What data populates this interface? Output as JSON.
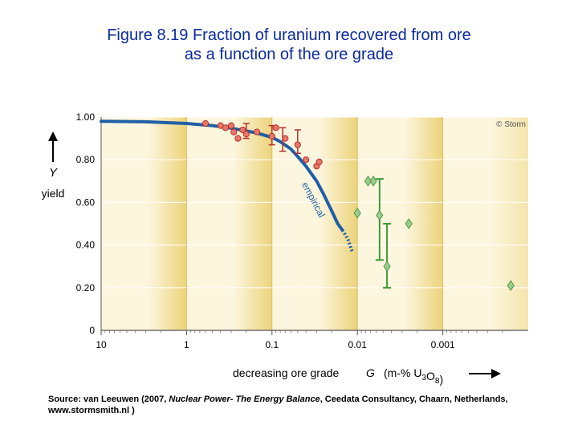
{
  "title": {
    "line1": "Figure 8.19 Fraction of uranium recovered from ore",
    "line2": "as a function of the ore grade"
  },
  "source": {
    "prefix": "Source: van Leeuwen (2007, ",
    "book": "Nuclear Power- The Energy Balance",
    "suffix": ", Ceedata Consultancy, Chaarn, Netherlands, www.stormsmith.nl )"
  },
  "colors": {
    "band_light": "#fdf6de",
    "band_dark": "#ecd37a",
    "curve": "#1f5fa6",
    "red_point": "#e8776a",
    "red_edge": "#b8302a",
    "green_point": "#9ccc8c",
    "green_edge": "#4f9a45",
    "green_bar": "#3d9a3a"
  },
  "chart_data": {
    "type": "scatter",
    "xscale": "log-decreasing",
    "xlim": [
      10,
      0.0001
    ],
    "ylim": [
      0,
      1.0
    ],
    "x_ticks": [
      10,
      1,
      0.1,
      0.01,
      0.001
    ],
    "x_tick_labels": [
      "10",
      "1",
      "0.1",
      "0.01",
      "0.001"
    ],
    "y_ticks": [
      0,
      0.2,
      0.4,
      0.6,
      0.8,
      1.0
    ],
    "y_tick_labels": [
      "0",
      "0.20",
      "0.40",
      "0.60",
      "0.80",
      "1.00"
    ],
    "xlabel": "decreasing ore grade",
    "xlabel_symbol": "G",
    "xlabel_units": "(m-% U3O8)",
    "ylabel_symbol": "Y",
    "ylabel": "yield",
    "copyright": "© Storm",
    "curve_label": "empirical",
    "curve": {
      "x": [
        10,
        3,
        1,
        0.5,
        0.3,
        0.2,
        0.15,
        0.1,
        0.08,
        0.06,
        0.05,
        0.04,
        0.03,
        0.025,
        0.02,
        0.017,
        0.015
      ],
      "y": [
        0.98,
        0.978,
        0.97,
        0.96,
        0.948,
        0.935,
        0.925,
        0.905,
        0.885,
        0.85,
        0.815,
        0.77,
        0.7,
        0.64,
        0.56,
        0.5,
        0.47
      ]
    },
    "curve_extension": {
      "x": [
        0.015,
        0.013,
        0.0115
      ],
      "y": [
        0.47,
        0.43,
        0.37
      ]
    },
    "series": [
      {
        "name": "measured (red)",
        "x": [
          0.6,
          0.4,
          0.35,
          0.3,
          0.28,
          0.25,
          0.22,
          0.2,
          0.15,
          0.1,
          0.09,
          0.07,
          0.05,
          0.04,
          0.03,
          0.028
        ],
        "y": [
          0.97,
          0.96,
          0.95,
          0.96,
          0.93,
          0.9,
          0.94,
          0.92,
          0.93,
          0.91,
          0.95,
          0.9,
          0.87,
          0.8,
          0.77,
          0.79
        ]
      },
      {
        "name": "measured (green)",
        "x": [
          0.01,
          0.0075,
          0.0065,
          0.0055,
          0.0045,
          0.0025,
          0.00016
        ],
        "y": [
          0.55,
          0.7,
          0.7,
          0.54,
          0.3,
          0.5,
          0.21
        ]
      }
    ],
    "red_error_bars": [
      {
        "x": 0.2,
        "low": 0.9,
        "high": 0.97
      },
      {
        "x": 0.1,
        "low": 0.87,
        "high": 0.96
      },
      {
        "x": 0.075,
        "low": 0.84,
        "high": 0.95
      },
      {
        "x": 0.05,
        "low": 0.83,
        "high": 0.94
      }
    ],
    "green_error_bars": [
      {
        "x": 0.0055,
        "low": 0.33,
        "high": 0.71
      },
      {
        "x": 0.0045,
        "low": 0.2,
        "high": 0.5
      }
    ]
  }
}
